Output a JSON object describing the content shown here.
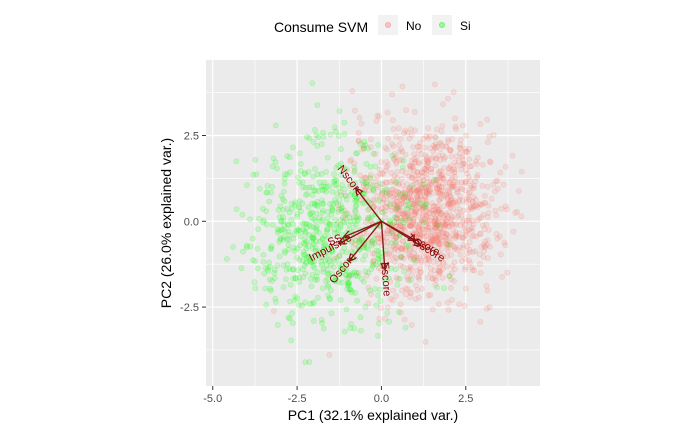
{
  "chart_data": {
    "type": "scatter",
    "subtype": "pca-biplot",
    "xlabel": "PC1 (32.1% explained var.)",
    "ylabel": "PC2 (26.0% explained var.)",
    "xlim": [
      -5.2,
      4.7
    ],
    "ylim": [
      -4.8,
      4.7
    ],
    "x_ticks": [
      -5.0,
      -2.5,
      0.0,
      2.5
    ],
    "x_tick_labels": [
      "-5.0",
      "-2.5",
      "0.0",
      "2.5"
    ],
    "y_ticks": [
      -2.5,
      0.0,
      2.5
    ],
    "y_tick_labels": [
      "-2.5",
      "0.0",
      "2.5"
    ],
    "grid": true,
    "legend": {
      "title": "Consume SVM",
      "position": "top",
      "entries": [
        {
          "label": "No",
          "color": "#f8766d"
        },
        {
          "label": "Si",
          "color": "#00ff00"
        }
      ]
    },
    "point_alpha": 0.15,
    "series": [
      {
        "name": "No",
        "color": "#f8766d",
        "center": [
          1.3,
          0.3
        ],
        "spread": [
          1.05,
          1.2
        ],
        "approx_count": 1150
      },
      {
        "name": "Si",
        "color": "#00ff00",
        "center": [
          -1.5,
          -0.3
        ],
        "spread": [
          1.2,
          1.3
        ],
        "approx_count": 650
      }
    ],
    "loadings": [
      {
        "label": "Nscore",
        "x": -0.75,
        "y": 0.95
      },
      {
        "label": "Impulsive",
        "x": -1.25,
        "y": -0.65
      },
      {
        "label": "SS",
        "x": -1.1,
        "y": -0.45
      },
      {
        "label": "Oscore",
        "x": -0.95,
        "y": -1.15
      },
      {
        "label": "Escore",
        "x": 0.1,
        "y": -1.4
      },
      {
        "label": "Ascore",
        "x": 1.0,
        "y": -0.55
      },
      {
        "label": "Cscore",
        "x": 1.15,
        "y": -0.7
      }
    ],
    "loading_color": "#8b1a1a"
  }
}
